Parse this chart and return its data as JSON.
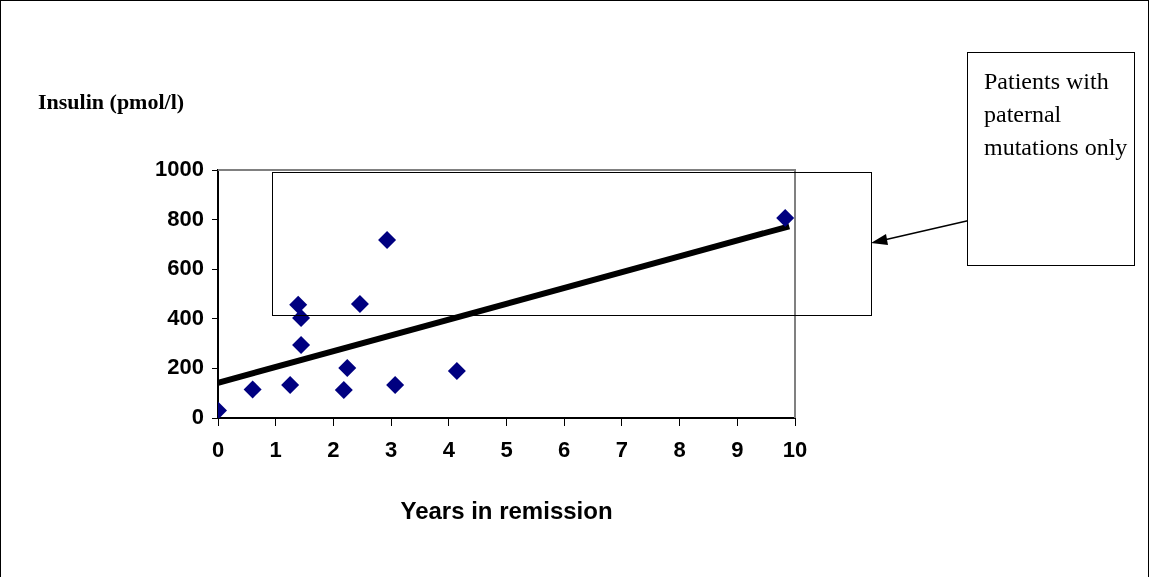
{
  "chart_data": {
    "type": "scatter",
    "xlabel": "Years in remission",
    "ylabel": "Insulin (pmol/l)",
    "marker": "diamond",
    "legend": false,
    "grid": false,
    "xlim": [
      0,
      10
    ],
    "xticks": [
      0,
      1,
      2,
      3,
      4,
      5,
      6,
      7,
      8,
      9,
      10
    ],
    "ylim": [
      0,
      1000
    ],
    "yticks": [
      0,
      200,
      400,
      600,
      800,
      1000
    ],
    "series": [
      {
        "color": "#000080",
        "x": [
          0,
          0.6,
          1.25,
          1.44,
          1.44,
          2.24,
          2.18,
          3.07,
          4.14
        ],
        "values": [
          30,
          115,
          133,
          294,
          403,
          202,
          113,
          133,
          190
        ]
      },
      {
        "color": "#000080",
        "x": [
          1.39,
          2.46,
          2.93,
          9.83
        ],
        "values": [
          457,
          460,
          718,
          806
        ]
      },
      {
        "type": "line",
        "color": "#000000",
        "marker": "none",
        "x": [
          0,
          9.9
        ],
        "values": [
          142,
          773
        ]
      }
    ],
    "annotations": [
      "Patients with paternal mutations only"
    ]
  }
}
